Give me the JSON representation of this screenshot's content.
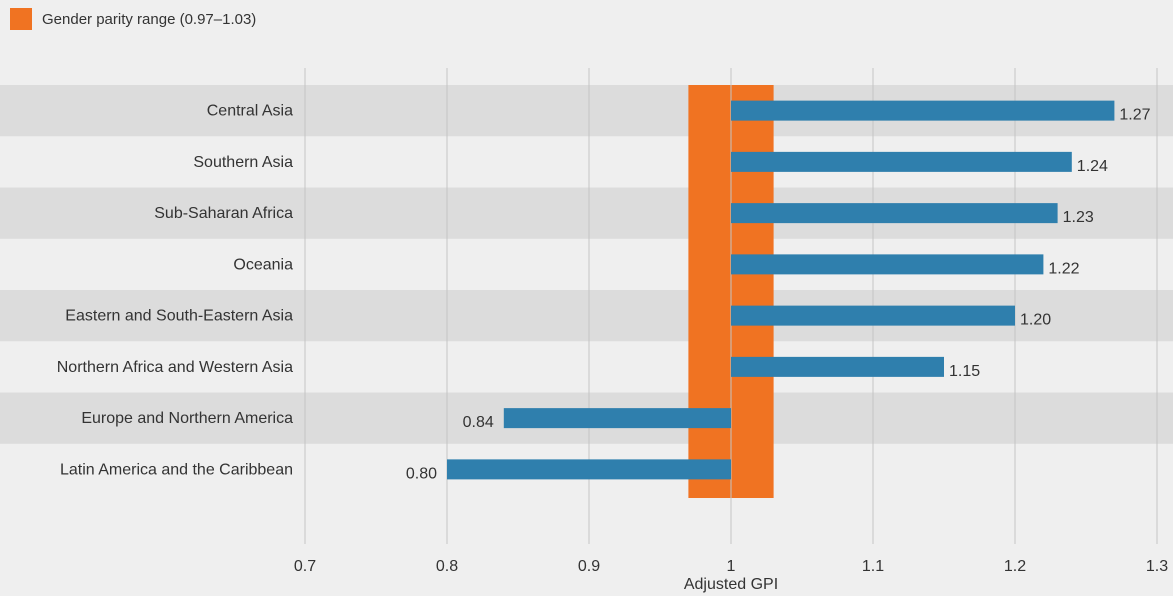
{
  "legend": {
    "label": "Gender parity range (0.97–1.03)"
  },
  "colors": {
    "background": "#efefef",
    "band": "#dcdcdc",
    "grid": "#c4c4c4",
    "parity": "#f07322",
    "bar": "#2f7fad",
    "text": "#333333"
  },
  "chart_data": {
    "type": "bar",
    "orientation": "horizontal",
    "title": "",
    "xlabel": "Adjusted GPI",
    "ylabel": "",
    "xlim": [
      0.7,
      1.3
    ],
    "baseline": 1,
    "xticks": [
      0.7,
      0.8,
      0.9,
      1,
      1.1,
      1.2,
      1.3
    ],
    "xtick_labels": [
      "0.7",
      "0.8",
      "0.9",
      "1",
      "1.1",
      "1.2",
      "1.3"
    ],
    "categories": [
      "Central Asia",
      "Southern Asia",
      "Sub-Saharan Africa",
      "Oceania",
      "Eastern and South-Eastern Asia",
      "Northern Africa and Western Asia",
      "Europe and Northern America",
      "Latin America and the Caribbean"
    ],
    "values": [
      1.27,
      1.24,
      1.23,
      1.22,
      1.2,
      1.15,
      0.84,
      0.8
    ],
    "value_labels": [
      "1.27",
      "1.24",
      "1.23",
      "1.22",
      "1.20",
      "1.15",
      "0.84",
      "0.80"
    ],
    "parity_range": [
      0.97,
      1.03
    ],
    "grid": true,
    "legend_position": "top-left",
    "alternating_row_bands": true
  }
}
